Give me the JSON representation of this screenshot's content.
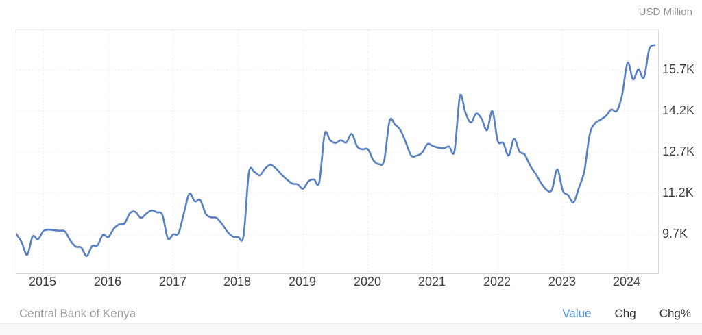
{
  "header": {
    "unit_label": "USD Million"
  },
  "footer": {
    "source": "Central Bank of Kenya",
    "tabs": [
      {
        "label": "Value",
        "active": true
      },
      {
        "label": "Chg",
        "active": false
      },
      {
        "label": "Chg%",
        "active": false
      }
    ]
  },
  "colors": {
    "line": "#5a82c3",
    "grid": "#e3e3e3",
    "active_tab": "#4a90e2"
  },
  "chart_data": {
    "type": "line",
    "title": "",
    "ylabel": "USD Million",
    "xlabel": "",
    "legend": "none",
    "grid": "dotted",
    "source": "Central Bank of Kenya",
    "xlim": [
      2014.585,
      2024.47
    ],
    "ylim": [
      8276,
      17145
    ],
    "x_ticks": [
      "2015",
      "2016",
      "2017",
      "2018",
      "2019",
      "2020",
      "2021",
      "2022",
      "2023",
      "2024"
    ],
    "y_ticks": [
      {
        "label": "15.7K",
        "value": 15700
      },
      {
        "label": "14.2K",
        "value": 14200
      },
      {
        "label": "12.7K",
        "value": 12700
      },
      {
        "label": "11.2K",
        "value": 11200
      },
      {
        "label": "9.7K",
        "value": 9700
      }
    ],
    "x": [
      "2014-08",
      "2014-09",
      "2014-10",
      "2014-11",
      "2014-12",
      "2015-01",
      "2015-02",
      "2015-03",
      "2015-04",
      "2015-05",
      "2015-06",
      "2015-07",
      "2015-08",
      "2015-09",
      "2015-10",
      "2015-11",
      "2015-12",
      "2016-01",
      "2016-02",
      "2016-03",
      "2016-04",
      "2016-05",
      "2016-06",
      "2016-07",
      "2016-08",
      "2016-09",
      "2016-10",
      "2016-11",
      "2016-12",
      "2017-01",
      "2017-02",
      "2017-03",
      "2017-04",
      "2017-05",
      "2017-06",
      "2017-07",
      "2017-08",
      "2017-09",
      "2017-10",
      "2017-11",
      "2017-12",
      "2018-01",
      "2018-02",
      "2018-03",
      "2018-04",
      "2018-05",
      "2018-06",
      "2018-07",
      "2018-08",
      "2018-09",
      "2018-10",
      "2018-11",
      "2018-12",
      "2019-01",
      "2019-02",
      "2019-03",
      "2019-04",
      "2019-05",
      "2019-06",
      "2019-07",
      "2019-08",
      "2019-09",
      "2019-10",
      "2019-11",
      "2019-12",
      "2020-01",
      "2020-02",
      "2020-03",
      "2020-04",
      "2020-05",
      "2020-06",
      "2020-07",
      "2020-08",
      "2020-09",
      "2020-10",
      "2020-11",
      "2020-12",
      "2021-01",
      "2021-02",
      "2021-03",
      "2021-04",
      "2021-05",
      "2021-06",
      "2021-07",
      "2021-08",
      "2021-09",
      "2021-10",
      "2021-11",
      "2021-12",
      "2022-01",
      "2022-02",
      "2022-03",
      "2022-04",
      "2022-05",
      "2022-06",
      "2022-07",
      "2022-08",
      "2022-09",
      "2022-10",
      "2022-11",
      "2022-12",
      "2023-01",
      "2023-02",
      "2023-03",
      "2023-04",
      "2023-05",
      "2023-06",
      "2023-07",
      "2023-08",
      "2023-09",
      "2023-10",
      "2023-11",
      "2023-12",
      "2024-01",
      "2024-02",
      "2024-03",
      "2024-04",
      "2024-05",
      "2024-06"
    ],
    "series": [
      {
        "name": "Value",
        "unit": "USD Million",
        "values": [
          9710,
          9400,
          8950,
          9620,
          9520,
          9820,
          9870,
          9850,
          9830,
          9800,
          9470,
          9250,
          9220,
          8910,
          9270,
          9300,
          9680,
          9600,
          9900,
          10060,
          10100,
          10470,
          10520,
          10300,
          10450,
          10570,
          10500,
          10400,
          9550,
          9700,
          9750,
          10500,
          11180,
          10900,
          10950,
          10450,
          10320,
          10300,
          10080,
          9800,
          9620,
          9600,
          9650,
          11950,
          11970,
          11850,
          12100,
          12230,
          12100,
          11880,
          11700,
          11550,
          11520,
          11360,
          11630,
          11700,
          11600,
          13360,
          13130,
          13030,
          13130,
          13050,
          13360,
          12900,
          12800,
          12800,
          12400,
          12260,
          12400,
          13840,
          13700,
          13500,
          13050,
          12570,
          12570,
          12670,
          12990,
          12920,
          12860,
          12840,
          12900,
          12740,
          14750,
          14150,
          13780,
          14100,
          13920,
          13500,
          14190,
          13100,
          13030,
          12570,
          13180,
          12720,
          12600,
          12200,
          11900,
          11570,
          11320,
          11320,
          12070,
          11300,
          11130,
          10870,
          11400,
          12000,
          13350,
          13750,
          13880,
          14020,
          14250,
          14200,
          14800,
          15960,
          15350,
          15720,
          15410,
          16450,
          16600
        ]
      }
    ]
  }
}
